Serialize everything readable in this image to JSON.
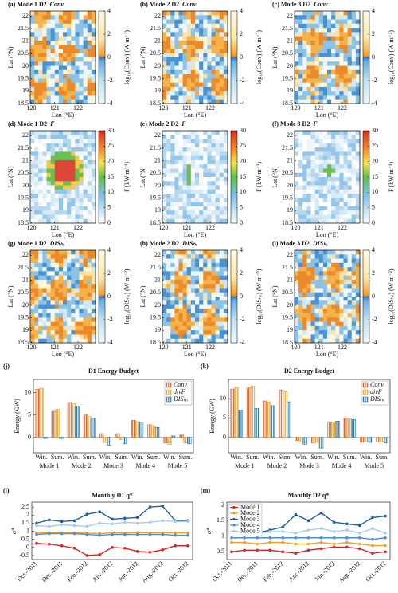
{
  "map_axes": {
    "xlabel": "Lon (°E)",
    "ylabel": "Lat (°N)",
    "xlim": [
      119.95,
      122.75
    ],
    "ylim": [
      18.5,
      22.2
    ],
    "xticks": [
      120,
      121,
      122
    ],
    "yticks": [
      18.5,
      19,
      19.5,
      20,
      20.5,
      21,
      21.5,
      22
    ]
  },
  "map_rows": [
    {
      "variable": "Conv",
      "cbar_type": "diverging",
      "cbar_label": "log₁₀(Conv) (W m⁻²)",
      "cbar_lim": [
        -4,
        4
      ],
      "cbar_ticks": [
        4,
        2,
        0,
        -2,
        -4
      ],
      "panels": [
        "(a)  Mode  1  D2",
        "(b)  Mode  2  D2",
        "(c)  Mode  3  D2"
      ]
    },
    {
      "variable": "F",
      "cbar_type": "sequential",
      "cbar_label": "F (kW m⁻¹)",
      "cbar_lim": [
        0,
        30
      ],
      "cbar_ticks": [
        30,
        25,
        20,
        15,
        10,
        5,
        0
      ],
      "panels": [
        "(d)  Mode  1  D2",
        "(e)  Mode  2  D2",
        "(f)  Mode  3  D2"
      ]
    },
    {
      "variable": "DISₕₒ",
      "cbar_type": "diverging",
      "cbar_label": "log₁₀(DISₕₒ) (W m⁻²)",
      "cbar_lim": [
        -4,
        4
      ],
      "cbar_ticks": [
        4,
        2,
        0,
        -2,
        -4
      ],
      "panels": [
        "(g)  Mode  1  D2",
        "(h)  Mode  2  D2",
        "(i)  Mode  3  D2"
      ]
    }
  ],
  "chart_data": [
    {
      "type": "bar",
      "panel_label": "(j)",
      "title": "D1 Energy Budget",
      "ylabel": "Energy (GW)",
      "groups": [
        "Mode 1",
        "Mode 2",
        "Mode 3",
        "Mode 4",
        "Mode 5"
      ],
      "categories": [
        "Win.",
        "Sum.",
        "Win.",
        "Sum.",
        "Win.",
        "Sum.",
        "Win.",
        "Sum.",
        "Win.",
        "Sum."
      ],
      "ylim": [
        -3.5,
        13
      ],
      "yticks": [
        0,
        5,
        10
      ],
      "legend": "upper right",
      "series": [
        {
          "name": "Conv",
          "color": "#d9622b",
          "values": [
            10.8,
            5.8,
            7.8,
            5.0,
            0.8,
            0.8,
            3.8,
            2.8,
            -1.3,
            0.5
          ]
        },
        {
          "name": "divF",
          "color": "#eea62c",
          "values": [
            11.0,
            6.3,
            7.5,
            4.6,
            -1.2,
            -0.6,
            3.5,
            2.6,
            -1.6,
            -1.3
          ]
        },
        {
          "name": "DISₕₒ",
          "color": "#2b7bb9",
          "values": [
            -0.3,
            -0.3,
            7.0,
            4.3,
            -1.8,
            -1.5,
            3.4,
            2.2,
            0.3,
            -1.5
          ]
        }
      ]
    },
    {
      "type": "bar",
      "panel_label": "(k)",
      "title": "D2 Energy Budget",
      "ylabel": "Energy (GW)",
      "groups": [
        "Mode 1",
        "Mode 2",
        "Mode 3",
        "Mode 4",
        "Mode 5"
      ],
      "categories": [
        "Win.",
        "Sum.",
        "Win.",
        "Sum.",
        "Win.",
        "Sum.",
        "Win.",
        "Sum.",
        "Win.",
        "Sum."
      ],
      "ylim": [
        -4,
        15
      ],
      "yticks": [
        0,
        5,
        10
      ],
      "legend": "upper right",
      "series": [
        {
          "name": "Conv",
          "color": "#d9622b",
          "values": [
            12.5,
            12.8,
            9.4,
            12.3,
            -0.8,
            -1.5,
            4.0,
            5.0,
            -1.2,
            -1.2
          ]
        },
        {
          "name": "divF",
          "color": "#eea62c",
          "values": [
            13.0,
            13.2,
            9.2,
            11.8,
            -1.2,
            -1.2,
            3.8,
            4.8,
            -1.0,
            -1.1
          ]
        },
        {
          "name": "DISₕₒ",
          "color": "#2b7bb9",
          "values": [
            7.0,
            7.5,
            8.2,
            9.2,
            -1.8,
            -2.8,
            4.2,
            4.6,
            -1.3,
            -1.5
          ]
        }
      ]
    },
    {
      "type": "line",
      "panel_label": "(l)",
      "title": "Monthly  D1  q*",
      "ylabel": "q*",
      "categories": [
        "Oct.-2011",
        null,
        "Dec.-2011",
        null,
        "Feb.-2012",
        null,
        "Apr.-2012",
        null,
        "Jun.-2012",
        null,
        "Aug.-2012",
        null,
        "Oct.-2012"
      ],
      "ylim": [
        -0.75,
        2.8
      ],
      "yticks": [
        -0.5,
        0,
        0.5,
        1,
        1.5,
        2,
        2.5
      ],
      "series": [
        {
          "name": "Mode 1",
          "color": "#d62728",
          "values": [
            0.25,
            0.2,
            0.1,
            -0.05,
            -0.5,
            -0.45,
            0.0,
            -0.05,
            -0.25,
            -0.3,
            -0.15,
            0.1,
            0.1
          ]
        },
        {
          "name": "Mode 2",
          "color": "#eea020",
          "values": [
            0.9,
            0.9,
            0.9,
            0.9,
            0.88,
            0.85,
            0.9,
            0.88,
            0.92,
            0.9,
            0.9,
            0.9,
            0.9
          ]
        },
        {
          "name": "Mode 3",
          "color": "#1f5f9f",
          "values": [
            1.5,
            1.7,
            1.6,
            1.65,
            2.05,
            2.2,
            1.75,
            1.8,
            1.85,
            2.5,
            2.55,
            1.65,
            1.65
          ]
        },
        {
          "name": "Mode 4",
          "color": "#4a90d9",
          "values": [
            0.8,
            0.85,
            0.85,
            0.85,
            0.8,
            0.75,
            0.8,
            0.8,
            0.8,
            0.8,
            0.8,
            0.75,
            0.75
          ]
        },
        {
          "name": "Mode 5",
          "color": "#a6cdee",
          "values": [
            1.35,
            1.3,
            1.4,
            1.35,
            1.3,
            1.5,
            1.45,
            1.55,
            1.5,
            1.55,
            1.65,
            1.6,
            1.6
          ]
        }
      ]
    },
    {
      "type": "line",
      "panel_label": "(m)",
      "title": "Monthly  D2  q*",
      "ylabel": "q*",
      "legend": "upper left",
      "categories": [
        "Oct.-2011",
        null,
        "Dec.-2011",
        null,
        "Feb.-2012",
        null,
        "Apr.-2012",
        null,
        "Jun.-2012",
        null,
        "Aug.-2012",
        null,
        "Oct.-2012"
      ],
      "ylim": [
        0.25,
        2.1
      ],
      "yticks": [
        0.5,
        1,
        1.5,
        2
      ],
      "series": [
        {
          "name": "Mode 1",
          "color": "#d62728",
          "values": [
            0.5,
            0.55,
            0.55,
            0.55,
            0.5,
            0.45,
            0.55,
            0.6,
            0.65,
            0.65,
            0.6,
            0.45,
            0.5
          ]
        },
        {
          "name": "Mode 2",
          "color": "#eea020",
          "values": [
            0.8,
            0.8,
            0.75,
            0.8,
            0.8,
            0.75,
            0.75,
            0.8,
            0.75,
            0.8,
            0.75,
            0.7,
            0.7
          ]
        },
        {
          "name": "Mode 3",
          "color": "#1f5f9f",
          "values": [
            1.3,
            1.25,
            1.1,
            1.2,
            1.3,
            1.7,
            1.5,
            1.75,
            1.45,
            1.4,
            1.35,
            1.6,
            1.65
          ]
        },
        {
          "name": "Mode 4",
          "color": "#4a90d9",
          "values": [
            0.95,
            0.95,
            0.95,
            0.95,
            0.95,
            0.95,
            0.95,
            0.95,
            0.95,
            0.95,
            0.95,
            0.9,
            0.95
          ]
        },
        {
          "name": "Mode 5",
          "color": "#a6cdee",
          "values": [
            1.1,
            1.1,
            1.1,
            1.15,
            1.15,
            1.1,
            1.2,
            1.25,
            1.15,
            1.2,
            1.1,
            1.25,
            1.1
          ]
        }
      ]
    }
  ]
}
